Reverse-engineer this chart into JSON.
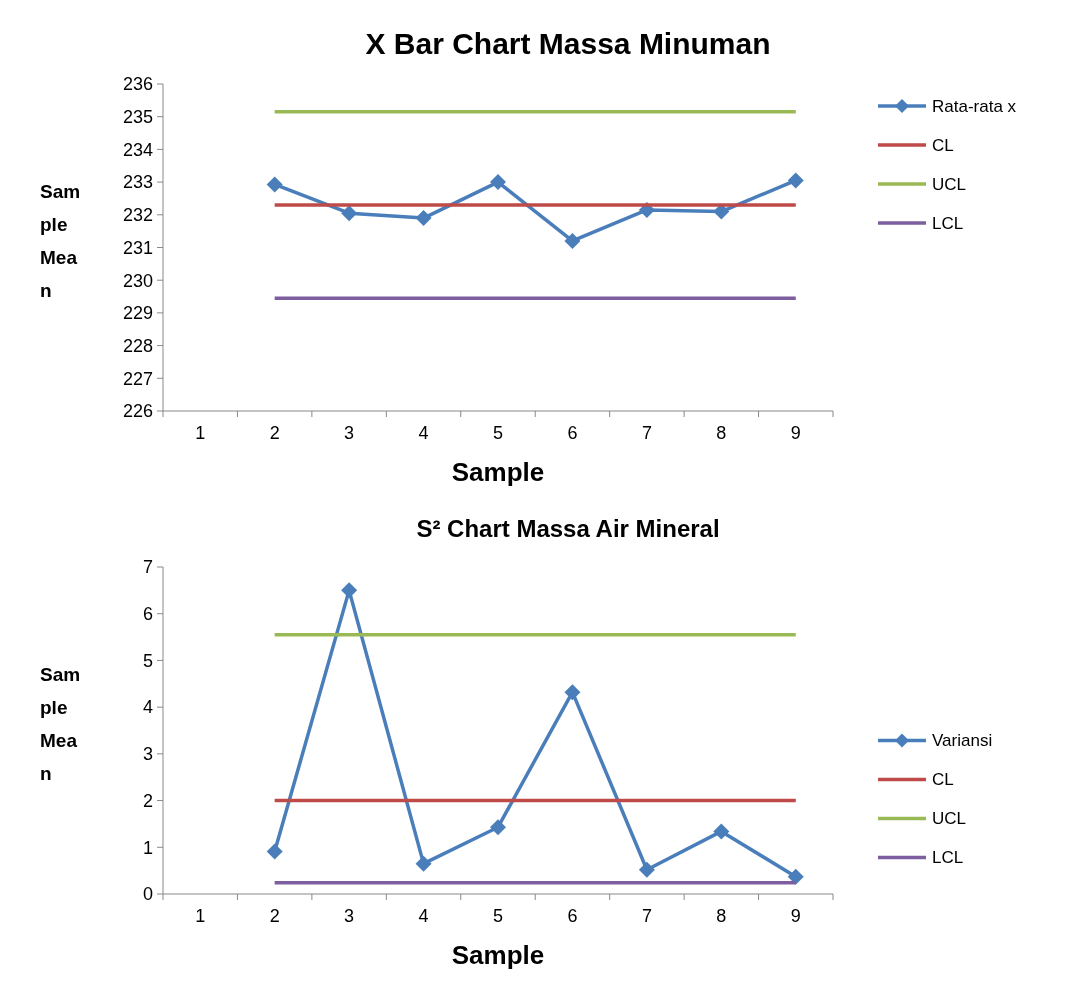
{
  "chart_data": [
    {
      "type": "line",
      "title": "X Bar Chart Massa Minuman",
      "xlabel": "Sample",
      "ylabel": "Sample Mean",
      "categories": [
        "1",
        "2",
        "3",
        "4",
        "5",
        "6",
        "7",
        "8",
        "9"
      ],
      "ylim": [
        226,
        236
      ],
      "yticks": [
        226,
        227,
        228,
        229,
        230,
        231,
        232,
        233,
        234,
        235,
        236
      ],
      "legend": "right",
      "grid": false,
      "series": [
        {
          "name": "Rata-rata x",
          "color": "#4a7ebb",
          "marker": "diamond",
          "values": [
            null,
            232.93,
            232.05,
            231.9,
            233.0,
            231.2,
            232.15,
            232.1,
            233.05
          ]
        },
        {
          "name": "CL",
          "color": "#be4b48",
          "marker": "none",
          "values": [
            null,
            232.3,
            232.3,
            232.3,
            232.3,
            232.3,
            232.3,
            232.3,
            232.3
          ]
        },
        {
          "name": "UCL",
          "color": "#98b954",
          "marker": "none",
          "values": [
            null,
            235.15,
            235.15,
            235.15,
            235.15,
            235.15,
            235.15,
            235.15,
            235.15
          ]
        },
        {
          "name": "LCL",
          "color": "#7d5fa0",
          "marker": "none",
          "values": [
            null,
            229.45,
            229.45,
            229.45,
            229.45,
            229.45,
            229.45,
            229.45,
            229.45
          ]
        }
      ]
    },
    {
      "type": "line",
      "title": "S² Chart Massa Air Mineral",
      "xlabel": "Sample",
      "ylabel": "Sample Mean",
      "categories": [
        "1",
        "2",
        "3",
        "4",
        "5",
        "6",
        "7",
        "8",
        "9"
      ],
      "ylim": [
        0,
        7
      ],
      "yticks": [
        0,
        1,
        2,
        3,
        4,
        5,
        6,
        7
      ],
      "legend": "right",
      "grid": false,
      "series": [
        {
          "name": "Variansi",
          "color": "#4a7ebb",
          "marker": "diamond",
          "values": [
            null,
            0.91,
            6.5,
            0.65,
            1.43,
            4.32,
            0.52,
            1.34,
            0.37
          ]
        },
        {
          "name": "CL",
          "color": "#be4b48",
          "marker": "none",
          "values": [
            null,
            2.0,
            2.0,
            2.0,
            2.0,
            2.0,
            2.0,
            2.0,
            2.0
          ]
        },
        {
          "name": "UCL",
          "color": "#98b954",
          "marker": "none",
          "values": [
            null,
            5.55,
            5.55,
            5.55,
            5.55,
            5.55,
            5.55,
            5.55,
            5.55
          ]
        },
        {
          "name": "LCL",
          "color": "#7d5fa0",
          "marker": "none",
          "values": [
            null,
            0.24,
            0.24,
            0.24,
            0.24,
            0.24,
            0.24,
            0.24,
            0.24
          ]
        }
      ]
    }
  ]
}
